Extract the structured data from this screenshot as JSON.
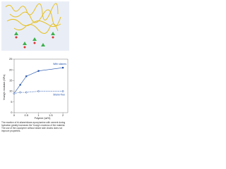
{
  "chart_data": {
    "type": "line",
    "x_label": "Polymer (wt%)",
    "y_label": "Young's modulus (GPa)",
    "x": [
      0,
      0.25,
      0.5,
      1,
      2
    ],
    "series": [
      {
        "name": "With silanes",
        "color": "#1f4fa8",
        "dashed": false,
        "values": [
          9,
          13,
          17,
          19.5,
          21
        ]
      },
      {
        "name": "Silane-free",
        "color": "#1f4fa8",
        "dashed": true,
        "values": [
          9,
          9.5,
          9.5,
          10,
          10
        ]
      }
    ],
    "xlim": [
      0,
      2.2
    ],
    "xticks": [
      0,
      0.5,
      1,
      1.5,
      2
    ],
    "ylim": [
      0,
      25
    ],
    "yticks": [
      0,
      5,
      10,
      15,
      20,
      25
    ]
  },
  "caption": "The reaction of tri-silane/silane-epoxy/amine with cement during hydration greatly increases the Young's modulus of the material. The use of the copolymer without silane side chains does not improve properties."
}
